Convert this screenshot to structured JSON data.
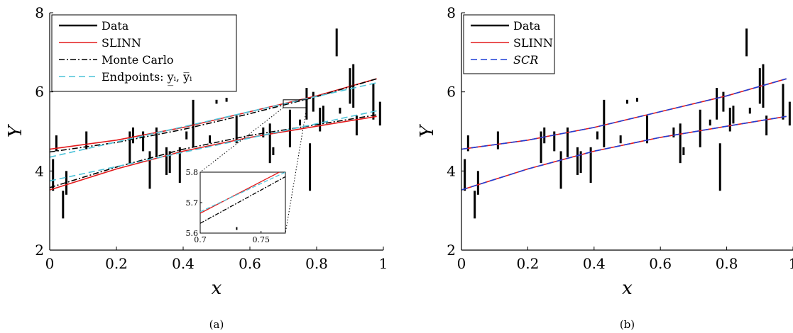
{
  "chart_data": [
    {
      "type": "line",
      "caption": "(a)",
      "xlabel": "x",
      "ylabel": "Y",
      "xlim": [
        0,
        1
      ],
      "ylim": [
        2,
        8
      ],
      "xticks": [
        "0",
        "0.2",
        "0.4",
        "0.6",
        "0.8",
        "1"
      ],
      "yticks": [
        "2",
        "4",
        "6",
        "8"
      ],
      "grid": false,
      "legend": {
        "placement": "top-left",
        "entries": [
          {
            "label": "Data",
            "style": "solid",
            "color": "#000000"
          },
          {
            "label": "SLINN",
            "style": "solid",
            "color": "#e31a1c"
          },
          {
            "label": "Monte Carlo",
            "style": "dashdot",
            "color": "#000000"
          },
          {
            "label": "Endpoints: y̲ᵢ, y̅ᵢ",
            "style": "dashed",
            "color": "#4dc3d9"
          }
        ]
      },
      "series": [
        {
          "key": "slinn_upper",
          "color": "#e31a1c",
          "dash": "",
          "x": [
            0,
            0.2,
            0.4,
            0.6,
            0.8,
            0.98
          ],
          "y": [
            4.55,
            4.78,
            5.1,
            5.5,
            5.9,
            6.33
          ]
        },
        {
          "key": "slinn_lower",
          "color": "#e31a1c",
          "dash": "",
          "x": [
            0,
            0.2,
            0.4,
            0.6,
            0.8,
            0.98
          ],
          "y": [
            3.52,
            4.05,
            4.5,
            4.85,
            5.13,
            5.38
          ]
        },
        {
          "key": "mc_upper",
          "color": "#000000",
          "dash": "8 3 2 3",
          "x": [
            0,
            0.2,
            0.4,
            0.6,
            0.8,
            0.98
          ],
          "y": [
            4.48,
            4.72,
            5.05,
            5.45,
            5.88,
            6.33
          ]
        },
        {
          "key": "mc_lower",
          "color": "#000000",
          "dash": "8 3 2 3",
          "x": [
            0,
            0.2,
            0.4,
            0.6,
            0.8,
            0.98
          ],
          "y": [
            3.58,
            4.1,
            4.55,
            4.9,
            5.17,
            5.42
          ]
        },
        {
          "key": "end_upper",
          "color": "#4dc3d9",
          "dash": "9 5",
          "x": [
            0,
            0.98
          ],
          "y": [
            4.35,
            6.23
          ]
        },
        {
          "key": "end_lower",
          "color": "#4dc3d9",
          "dash": "9 5",
          "x": [
            0,
            0.98
          ],
          "y": [
            3.75,
            5.52
          ]
        }
      ],
      "data_intervals": [
        {
          "x": 0.01,
          "low": 3.5,
          "high": 4.3
        },
        {
          "x": 0.02,
          "low": 4.5,
          "high": 4.9
        },
        {
          "x": 0.04,
          "low": 2.8,
          "high": 3.5
        },
        {
          "x": 0.05,
          "low": 3.4,
          "high": 4.0
        },
        {
          "x": 0.11,
          "low": 4.55,
          "high": 5.0
        },
        {
          "x": 0.24,
          "low": 4.2,
          "high": 5.0
        },
        {
          "x": 0.25,
          "low": 4.7,
          "high": 5.1
        },
        {
          "x": 0.28,
          "low": 4.5,
          "high": 5.0
        },
        {
          "x": 0.3,
          "low": 3.55,
          "high": 4.5
        },
        {
          "x": 0.32,
          "low": 4.35,
          "high": 5.1
        },
        {
          "x": 0.35,
          "low": 3.9,
          "high": 4.6
        },
        {
          "x": 0.36,
          "low": 3.95,
          "high": 4.5
        },
        {
          "x": 0.39,
          "low": 3.7,
          "high": 4.6
        },
        {
          "x": 0.41,
          "low": 4.8,
          "high": 5.0
        },
        {
          "x": 0.43,
          "low": 4.6,
          "high": 5.8
        },
        {
          "x": 0.48,
          "low": 4.7,
          "high": 4.9
        },
        {
          "x": 0.5,
          "low": 5.7,
          "high": 5.8
        },
        {
          "x": 0.53,
          "low": 5.75,
          "high": 5.85
        },
        {
          "x": 0.56,
          "low": 4.7,
          "high": 5.4
        },
        {
          "x": 0.64,
          "low": 4.85,
          "high": 5.1
        },
        {
          "x": 0.66,
          "low": 4.2,
          "high": 5.2
        },
        {
          "x": 0.67,
          "low": 4.4,
          "high": 4.6
        },
        {
          "x": 0.72,
          "low": 4.6,
          "high": 5.55
        },
        {
          "x": 0.75,
          "low": 5.15,
          "high": 5.3
        },
        {
          "x": 0.77,
          "low": 5.3,
          "high": 6.1
        },
        {
          "x": 0.78,
          "low": 3.5,
          "high": 4.7
        },
        {
          "x": 0.79,
          "low": 5.5,
          "high": 6.0
        },
        {
          "x": 0.81,
          "low": 5.0,
          "high": 5.6
        },
        {
          "x": 0.82,
          "low": 5.2,
          "high": 5.65
        },
        {
          "x": 0.86,
          "low": 6.9,
          "high": 7.6
        },
        {
          "x": 0.87,
          "low": 5.45,
          "high": 5.6
        },
        {
          "x": 0.9,
          "low": 5.7,
          "high": 6.6
        },
        {
          "x": 0.91,
          "low": 5.6,
          "high": 6.7
        },
        {
          "x": 0.92,
          "low": 4.9,
          "high": 5.4
        },
        {
          "x": 0.97,
          "low": 5.3,
          "high": 6.2
        },
        {
          "x": 0.99,
          "low": 5.15,
          "high": 5.75
        }
      ],
      "inset": {
        "xlim": [
          0.7,
          0.77
        ],
        "ylim": [
          5.6,
          5.8
        ],
        "xticks": [
          "0.7",
          "0.75"
        ],
        "yticks": [
          "5.6",
          "5.7",
          "5.8"
        ],
        "series": [
          {
            "color": "#e31a1c",
            "dash": "",
            "x": [
              0.7,
              0.765
            ],
            "y": [
              5.665,
              5.8
            ]
          },
          {
            "color": "#4dc3d9",
            "dash": "6 3",
            "x": [
              0.7,
              0.77
            ],
            "y": [
              5.67,
              5.8
            ]
          },
          {
            "color": "#000000",
            "dash": "6 2 2 2",
            "x": [
              0.7,
              0.77
            ],
            "y": [
              5.632,
              5.785
            ]
          }
        ],
        "points": [
          {
            "x": 0.73,
            "y": 5.615
          }
        ]
      }
    },
    {
      "type": "line",
      "caption": "(b)",
      "xlabel": "x",
      "ylabel": "Y",
      "xlim": [
        0,
        1
      ],
      "ylim": [
        2,
        8
      ],
      "xticks": [
        "0",
        "0.2",
        "0.4",
        "0.6",
        "0.8",
        "1"
      ],
      "yticks": [
        "2",
        "4",
        "6",
        "8"
      ],
      "grid": false,
      "legend": {
        "placement": "top-left",
        "entries": [
          {
            "label": "Data",
            "style": "solid",
            "color": "#000000"
          },
          {
            "label": "SLINN",
            "style": "solid",
            "color": "#e31a1c"
          },
          {
            "label": "SCR",
            "style": "dashed",
            "color": "#1f3fd6"
          }
        ]
      },
      "series": [
        {
          "key": "slinn_upper",
          "color": "#e31a1c",
          "dash": "",
          "x": [
            0,
            0.2,
            0.4,
            0.6,
            0.8,
            0.98
          ],
          "y": [
            4.55,
            4.78,
            5.1,
            5.5,
            5.9,
            6.33
          ]
        },
        {
          "key": "slinn_lower",
          "color": "#e31a1c",
          "dash": "",
          "x": [
            0,
            0.2,
            0.4,
            0.6,
            0.8,
            0.98
          ],
          "y": [
            3.52,
            4.05,
            4.5,
            4.85,
            5.13,
            5.38
          ]
        },
        {
          "key": "scr_upper",
          "color": "#1f3fd6",
          "dash": "9 5",
          "x": [
            0,
            0.2,
            0.4,
            0.6,
            0.8,
            0.98
          ],
          "y": [
            4.55,
            4.78,
            5.1,
            5.5,
            5.9,
            6.33
          ]
        },
        {
          "key": "scr_lower",
          "color": "#1f3fd6",
          "dash": "9 5",
          "x": [
            0,
            0.2,
            0.4,
            0.6,
            0.8,
            0.98
          ],
          "y": [
            3.52,
            4.05,
            4.5,
            4.85,
            5.13,
            5.38
          ]
        }
      ],
      "data_intervals": [
        {
          "x": 0.01,
          "low": 3.5,
          "high": 4.3
        },
        {
          "x": 0.02,
          "low": 4.5,
          "high": 4.9
        },
        {
          "x": 0.04,
          "low": 2.8,
          "high": 3.5
        },
        {
          "x": 0.05,
          "low": 3.4,
          "high": 4.0
        },
        {
          "x": 0.11,
          "low": 4.55,
          "high": 5.0
        },
        {
          "x": 0.24,
          "low": 4.2,
          "high": 5.0
        },
        {
          "x": 0.25,
          "low": 4.7,
          "high": 5.1
        },
        {
          "x": 0.28,
          "low": 4.5,
          "high": 5.0
        },
        {
          "x": 0.3,
          "low": 3.55,
          "high": 4.5
        },
        {
          "x": 0.32,
          "low": 4.35,
          "high": 5.1
        },
        {
          "x": 0.35,
          "low": 3.9,
          "high": 4.6
        },
        {
          "x": 0.36,
          "low": 3.95,
          "high": 4.5
        },
        {
          "x": 0.39,
          "low": 3.7,
          "high": 4.6
        },
        {
          "x": 0.41,
          "low": 4.8,
          "high": 5.0
        },
        {
          "x": 0.43,
          "low": 4.6,
          "high": 5.8
        },
        {
          "x": 0.48,
          "low": 4.7,
          "high": 4.9
        },
        {
          "x": 0.5,
          "low": 5.7,
          "high": 5.8
        },
        {
          "x": 0.53,
          "low": 5.75,
          "high": 5.85
        },
        {
          "x": 0.56,
          "low": 4.7,
          "high": 5.4
        },
        {
          "x": 0.64,
          "low": 4.85,
          "high": 5.1
        },
        {
          "x": 0.66,
          "low": 4.2,
          "high": 5.2
        },
        {
          "x": 0.67,
          "low": 4.4,
          "high": 4.6
        },
        {
          "x": 0.72,
          "low": 4.6,
          "high": 5.55
        },
        {
          "x": 0.75,
          "low": 5.15,
          "high": 5.3
        },
        {
          "x": 0.77,
          "low": 5.3,
          "high": 6.1
        },
        {
          "x": 0.78,
          "low": 3.5,
          "high": 4.7
        },
        {
          "x": 0.79,
          "low": 5.5,
          "high": 6.0
        },
        {
          "x": 0.81,
          "low": 5.0,
          "high": 5.6
        },
        {
          "x": 0.82,
          "low": 5.2,
          "high": 5.65
        },
        {
          "x": 0.86,
          "low": 6.9,
          "high": 7.6
        },
        {
          "x": 0.87,
          "low": 5.45,
          "high": 5.6
        },
        {
          "x": 0.9,
          "low": 5.7,
          "high": 6.6
        },
        {
          "x": 0.91,
          "low": 5.6,
          "high": 6.7
        },
        {
          "x": 0.92,
          "low": 4.9,
          "high": 5.4
        },
        {
          "x": 0.97,
          "low": 5.3,
          "high": 6.2
        },
        {
          "x": 0.99,
          "low": 5.15,
          "high": 5.75
        }
      ]
    }
  ]
}
